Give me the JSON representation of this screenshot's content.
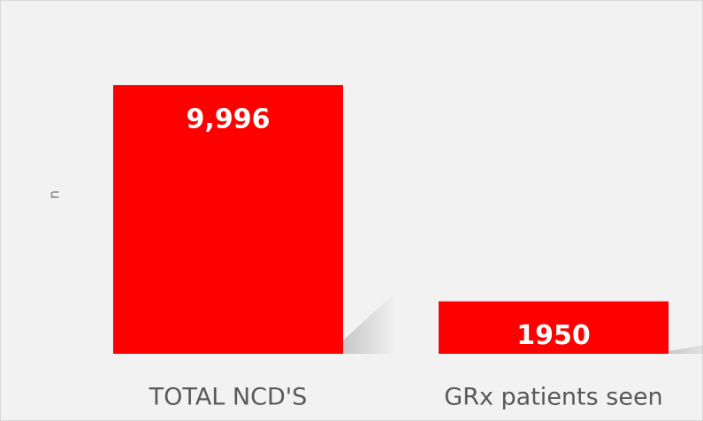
{
  "chart_data": {
    "type": "bar",
    "y_label": "n",
    "categories": [
      "TOTAL NCD'S",
      "GRx patients seen"
    ],
    "values": [
      9996,
      1950
    ],
    "value_labels": [
      "9,996",
      "1950"
    ],
    "color": "#ff0000",
    "ylim": [
      0,
      10000
    ]
  }
}
